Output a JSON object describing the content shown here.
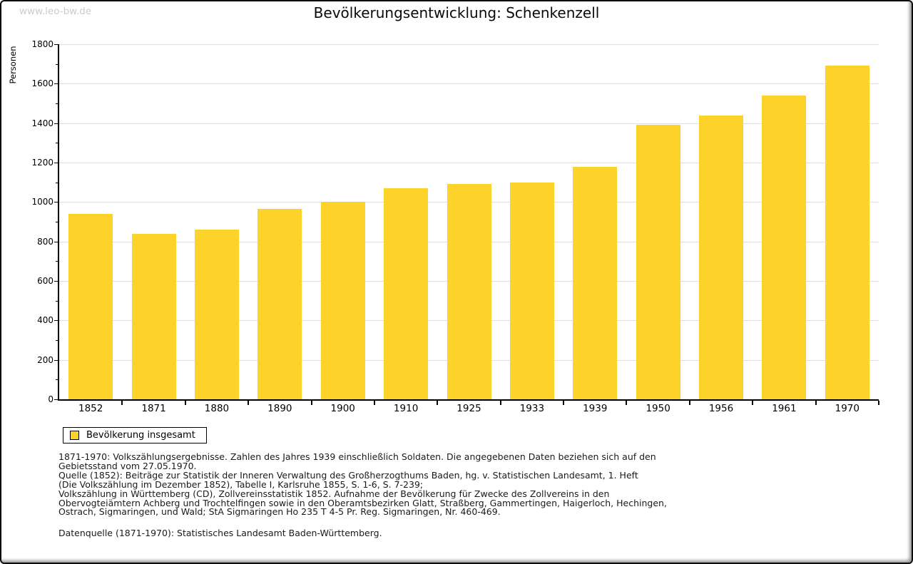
{
  "watermark": "www.leo-bw.de",
  "title": "Bevölkerungsentwicklung: Schenkenzell",
  "axes": {
    "y_label": "Personen"
  },
  "legend": {
    "label": "Bevölkerung insgesamt"
  },
  "chart_data": {
    "type": "bar",
    "title": "Bevölkerungsentwicklung: Schenkenzell",
    "categories": [
      "1852",
      "1871",
      "1880",
      "1890",
      "1900",
      "1910",
      "1925",
      "1933",
      "1939",
      "1950",
      "1956",
      "1961",
      "1970"
    ],
    "values": [
      940,
      840,
      860,
      965,
      1000,
      1070,
      1090,
      1100,
      1180,
      1390,
      1440,
      1540,
      1690
    ],
    "series_name": "Bevölkerung insgesamt",
    "xlabel": "",
    "ylabel": "Personen",
    "ylim": [
      0,
      1800
    ],
    "ytick_step": 200,
    "y_minor_step": 100,
    "grid": true,
    "legend_position": "bottom-left",
    "bar_color": "#fcd22b"
  },
  "colors": {
    "bar": "#fcd22b",
    "grid": "#dedede",
    "axis": "#000000",
    "watermark": "#cbcbcb",
    "background": "#ffffff"
  },
  "footnotes": {
    "lines": [
      "1871-1970: Volkszählungsergebnisse. Zahlen des Jahres 1939 einschließlich Soldaten. Die angegebenen Daten beziehen sich auf den",
      "Gebietsstand vom 27.05.1970.",
      "Quelle (1852): Beiträge zur Statistik der Inneren Verwaltung des Großherzogthums Baden, hg. v. Statistischen Landesamt, 1. Heft",
      "(Die Volkszählung im Dezember 1852), Tabelle I, Karlsruhe 1855, S. 1-6, S. 7-239;",
      "Volkszählung in Württemberg (CD), Zollvereinsstatistik 1852. Aufnahme der Bevölkerung für Zwecke des Zollvereins in den",
      "Obervogteiämtern Achberg und Trochtelfingen sowie in den Oberamtsbezirken Glatt, Straßberg, Gammertingen, Haigerloch, Hechingen,",
      "Ostrach, Sigmaringen, und Wald; StA Sigmaringen Ho 235 T 4-5 Pr. Reg. Sigmaringen, Nr. 460-469."
    ],
    "datasource": "Datenquelle (1871-1970): Statistisches Landesamt Baden-Württemberg."
  }
}
